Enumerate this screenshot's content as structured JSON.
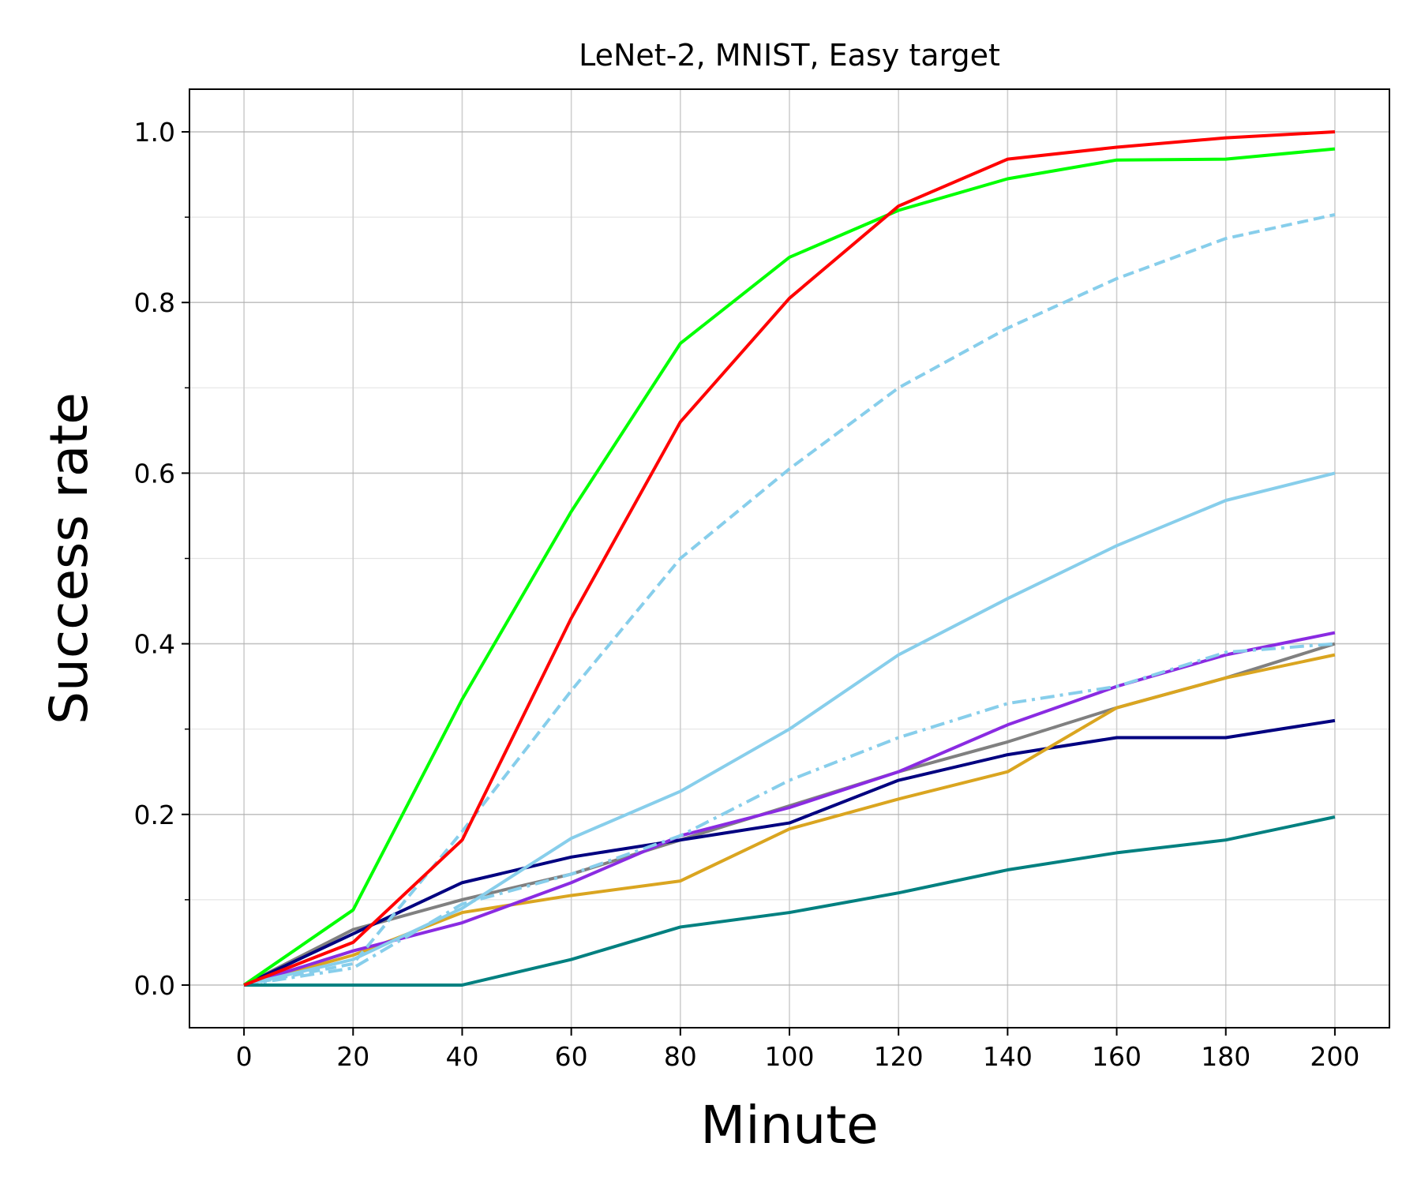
{
  "chart_data": {
    "type": "line",
    "title": "LeNet-2, MNIST, Easy target",
    "xlabel": "Minute",
    "ylabel": "Success rate",
    "xlim": [
      -10,
      210
    ],
    "ylim": [
      -0.05,
      1.05
    ],
    "x_ticks": [
      0,
      20,
      40,
      60,
      80,
      100,
      120,
      140,
      160,
      180,
      200
    ],
    "x_tick_labels": [
      "0",
      "20",
      "40",
      "60",
      "80",
      "100",
      "120",
      "140",
      "160",
      "180",
      "200"
    ],
    "y_ticks": [
      0.0,
      0.2,
      0.4,
      0.6,
      0.8,
      1.0
    ],
    "y_tick_labels": [
      "0.0",
      "0.2",
      "0.4",
      "0.6",
      "0.8",
      "1.0"
    ],
    "y_minor_ticks": [
      0.1,
      0.3,
      0.5,
      0.7,
      0.9
    ],
    "grid": true,
    "legend": "none",
    "x": [
      0,
      20,
      40,
      60,
      80,
      100,
      120,
      140,
      160,
      180,
      200
    ],
    "series": [
      {
        "color": "#808080",
        "dash": "solid",
        "values": [
          0.0,
          0.065,
          0.1,
          0.13,
          0.17,
          0.21,
          0.25,
          0.285,
          0.325,
          0.36,
          0.4
        ]
      },
      {
        "color": "#000080",
        "dash": "solid",
        "values": [
          0.0,
          0.06,
          0.12,
          0.15,
          0.17,
          0.19,
          0.24,
          0.27,
          0.29,
          0.29,
          0.31
        ]
      },
      {
        "color": "#DAA520",
        "dash": "solid",
        "values": [
          0.0,
          0.035,
          0.085,
          0.105,
          0.122,
          0.183,
          0.218,
          0.25,
          0.325,
          0.36,
          0.387
        ]
      },
      {
        "color": "#8A2BE2",
        "dash": "solid",
        "values": [
          0.0,
          0.04,
          0.073,
          0.12,
          0.175,
          0.208,
          0.25,
          0.305,
          0.35,
          0.387,
          0.413
        ]
      },
      {
        "color": "#87CEEB",
        "dash": "dashdot",
        "values": [
          0.0,
          0.02,
          0.095,
          0.13,
          0.175,
          0.24,
          0.29,
          0.33,
          0.35,
          0.39,
          0.4
        ]
      },
      {
        "color": "#87CEEB",
        "dash": "solid",
        "values": [
          0.0,
          0.03,
          0.09,
          0.172,
          0.227,
          0.3,
          0.387,
          0.453,
          0.515,
          0.568,
          0.6
        ]
      },
      {
        "color": "#87CEEB",
        "dash": "dashed",
        "values": [
          0.0,
          0.025,
          0.18,
          0.345,
          0.5,
          0.605,
          0.7,
          0.77,
          0.828,
          0.875,
          0.903
        ]
      },
      {
        "color": "#008080",
        "dash": "solid",
        "values": [
          0.0,
          0.0,
          0.0,
          0.03,
          0.068,
          0.085,
          0.108,
          0.135,
          0.155,
          0.17,
          0.197
        ]
      },
      {
        "color": "#00FF00",
        "dash": "solid",
        "values": [
          0.0,
          0.088,
          0.335,
          0.555,
          0.752,
          0.853,
          0.908,
          0.945,
          0.967,
          0.968,
          0.98
        ]
      },
      {
        "color": "#FF0000",
        "dash": "solid",
        "values": [
          0.0,
          0.05,
          0.17,
          0.43,
          0.66,
          0.805,
          0.913,
          0.968,
          0.982,
          0.993,
          1.0
        ]
      }
    ]
  }
}
